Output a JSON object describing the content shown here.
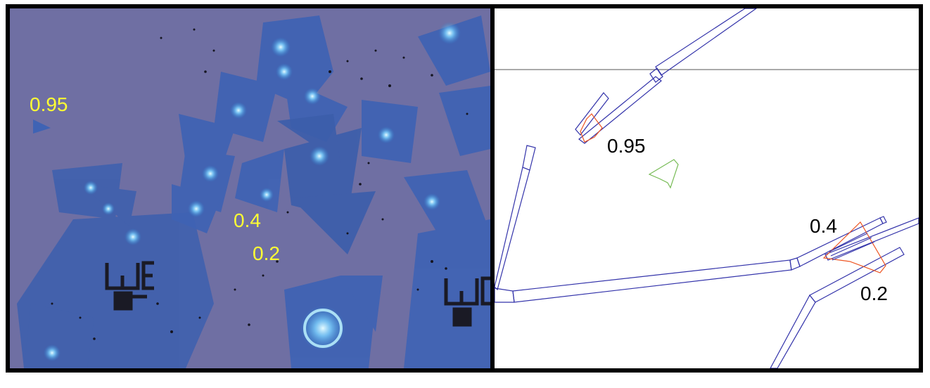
{
  "left_panel": {
    "labels": [
      "0.95",
      "0.4",
      "0.2"
    ],
    "label_color": "#ffff33",
    "colors": {
      "background": "#6f6fa3",
      "flake": "#3d63b0",
      "flake_bright": "#2f86d3",
      "glow": "#aee8ff",
      "marker": "#1a1a25"
    }
  },
  "right_panel": {
    "labels": [
      "0.95",
      "0.4",
      "0.2"
    ],
    "colors": {
      "outline": "#3333aa",
      "red_outline": "#ee5522",
      "green_outline": "#77bb55",
      "horizontal_line": "#555555"
    }
  }
}
